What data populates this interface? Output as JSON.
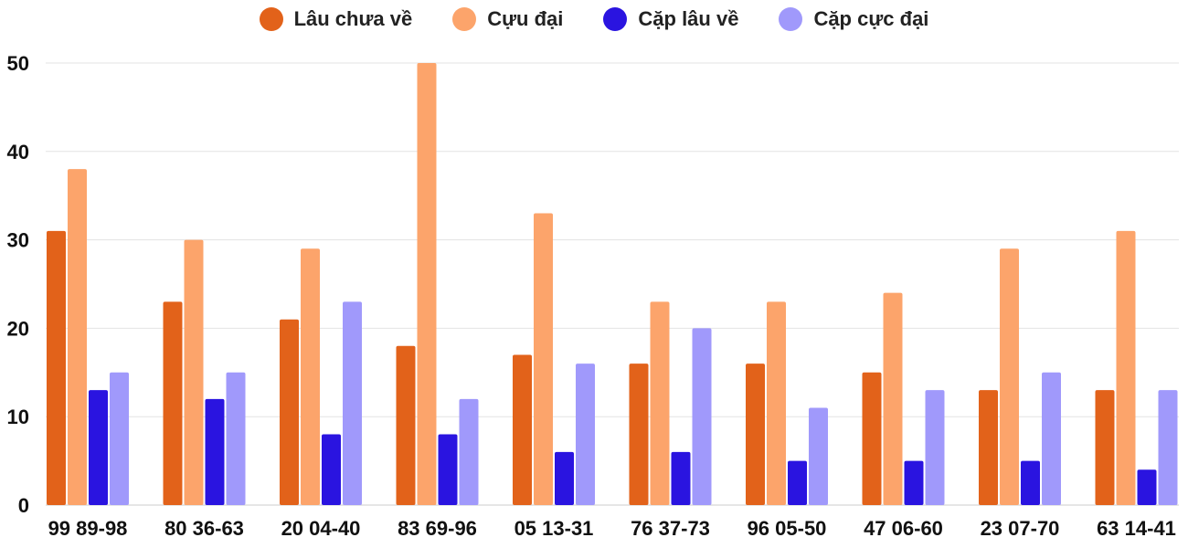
{
  "chart_data": {
    "type": "bar",
    "categories": [
      "99 89-98",
      "80 36-63",
      "20 04-40",
      "83 69-96",
      "05 13-31",
      "76 37-73",
      "96 05-50",
      "47 06-60",
      "23 07-70",
      "63 14-41"
    ],
    "series": [
      {
        "name": "Lâu chưa về",
        "color": "#e2621a",
        "values": [
          31,
          23,
          21,
          18,
          17,
          16,
          16,
          15,
          13,
          13
        ]
      },
      {
        "name": "Cựu đại",
        "color": "#fca46b",
        "values": [
          38,
          30,
          29,
          50,
          33,
          23,
          23,
          24,
          29,
          31
        ]
      },
      {
        "name": "Cặp lâu về",
        "color": "#2a14e0",
        "values": [
          13,
          12,
          8,
          8,
          6,
          6,
          5,
          5,
          5,
          4
        ]
      },
      {
        "name": "Cặp cực đại",
        "color": "#a099fb",
        "values": [
          15,
          15,
          23,
          12,
          16,
          20,
          11,
          13,
          15,
          13
        ]
      }
    ],
    "y_ticks": [
      "0",
      "10",
      "20",
      "30",
      "40",
      "50"
    ],
    "ylim": [
      0,
      50
    ],
    "title": "",
    "xlabel": "",
    "ylabel": "",
    "grid": true,
    "legend_position": "top-center"
  }
}
